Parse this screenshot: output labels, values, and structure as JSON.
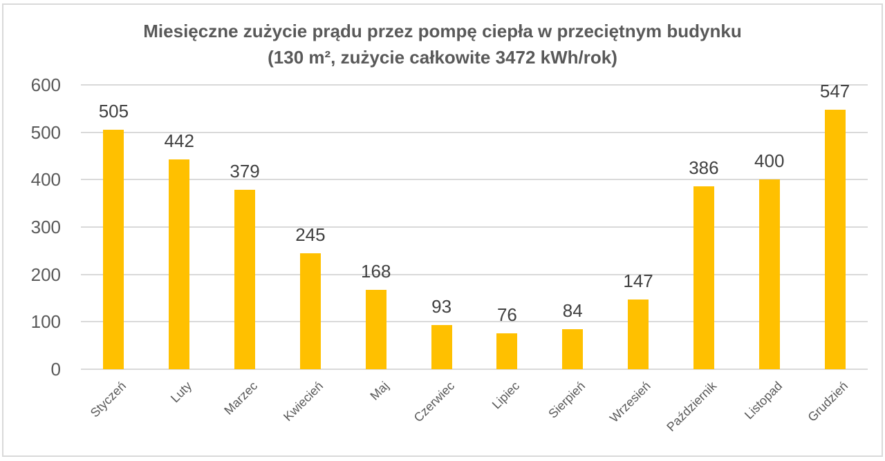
{
  "chart_data": {
    "type": "bar",
    "title": "Miesięczne zużycie prądu przez pompę ciepła w przeciętnym budynku (130 m², zużycie całkowite 3472 kWh/rok)",
    "title_lines": [
      "Miesięczne zużycie prądu przez pompę ciepła w przeciętnym budynku",
      "(130 m², zużycie całkowite 3472 kWh/rok)"
    ],
    "categories": [
      "Styczeń",
      "Luty",
      "Marzec",
      "Kwiecień",
      "Maj",
      "Czerwiec",
      "Lipiec",
      "Sierpień",
      "Wrzesień",
      "Październik",
      "Listopad",
      "Grudzień"
    ],
    "values": [
      505,
      442,
      379,
      245,
      168,
      93,
      76,
      84,
      147,
      386,
      400,
      547
    ],
    "xlabel": "",
    "ylabel": "",
    "ylim": [
      0,
      600
    ],
    "yticks": [
      "0",
      "100",
      "200",
      "300",
      "400",
      "500",
      "600"
    ],
    "grid": true,
    "legend": null,
    "data_labels": true,
    "bar_color": "#FFC000"
  }
}
